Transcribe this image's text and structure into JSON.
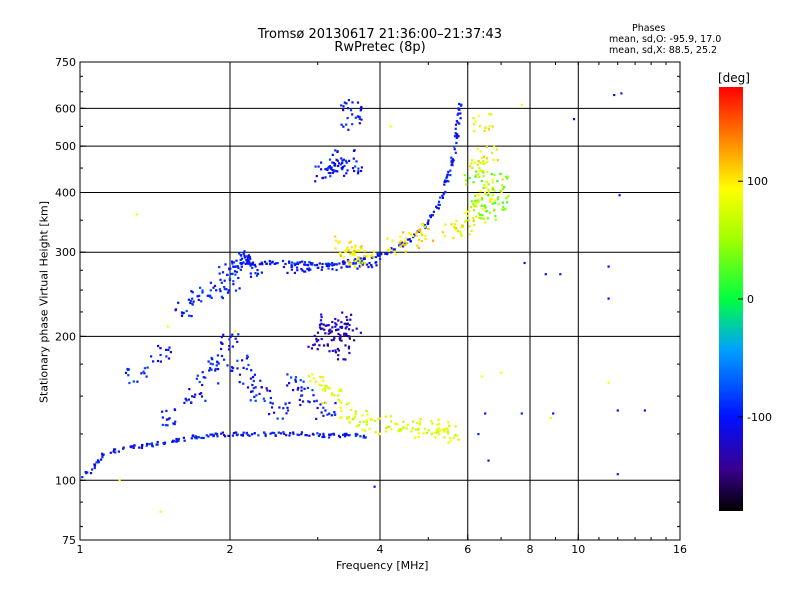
{
  "header": {
    "title_line1": "Tromsø 20130617 21:36:00–21:37:43",
    "title_line2": "RwPretec (8p)"
  },
  "phases_panel": {
    "heading": "Phases",
    "o_label": "mean, sd,O:",
    "o_values": "-95.9, 17.0",
    "x_label": "mean, sd,X:",
    "x_values": "88.5, 25.2"
  },
  "colorbar": {
    "unit": "[deg]",
    "range": [
      -180,
      180
    ],
    "ticks": [
      {
        "value": 100,
        "label": "100"
      },
      {
        "value": 0,
        "label": "0"
      },
      {
        "value": -100,
        "label": "-100"
      }
    ]
  },
  "chart_data": {
    "type": "scatter",
    "xlabel": "Frequency [MHz]",
    "ylabel": "Stationary phase Virtual Height [km]",
    "x_scale": "log",
    "y_scale": "log",
    "xlim": [
      1,
      16
    ],
    "ylim": [
      75,
      750
    ],
    "x_ticks": [
      {
        "value": 1,
        "label": "1"
      },
      {
        "value": 2,
        "label": "2"
      },
      {
        "value": 4,
        "label": "4"
      },
      {
        "value": 6,
        "label": "6"
      },
      {
        "value": 8,
        "label": "8"
      },
      {
        "value": 10,
        "label": "10"
      },
      {
        "value": 16,
        "label": "16"
      }
    ],
    "x_gridlines": [
      2,
      4,
      6,
      8,
      10
    ],
    "y_ticks": [
      {
        "value": 75,
        "label": "75"
      },
      {
        "value": 100,
        "label": "100"
      },
      {
        "value": 200,
        "label": "200"
      },
      {
        "value": 300,
        "label": "300"
      },
      {
        "value": 400,
        "label": "400"
      },
      {
        "value": 500,
        "label": "500"
      },
      {
        "value": 600,
        "label": "600"
      },
      {
        "value": 750,
        "label": "750"
      }
    ],
    "y_gridlines": [
      100,
      200,
      300,
      400,
      500,
      600
    ],
    "grid": true,
    "color_by": "phase [deg]",
    "traces": [
      {
        "kind": "curve",
        "phase": -100,
        "points": [
          [
            2.1,
            285
          ],
          [
            2.6,
            285
          ],
          [
            3.1,
            283
          ],
          [
            3.6,
            288
          ],
          [
            4.1,
            298
          ],
          [
            4.6,
            318
          ],
          [
            5.0,
            345
          ],
          [
            5.3,
            385
          ],
          [
            5.55,
            450
          ],
          [
            5.7,
            530
          ],
          [
            5.8,
            620
          ]
        ]
      },
      {
        "kind": "band",
        "phase": -100,
        "points": [
          [
            2.6,
            275
          ],
          [
            3.1,
            280
          ],
          [
            3.6,
            282
          ],
          [
            4.0,
            286
          ]
        ]
      },
      {
        "kind": "band",
        "phase": -100,
        "points": [
          [
            1.9,
            275
          ],
          [
            2.2,
            290
          ],
          [
            2.1,
            300
          ],
          [
            2.3,
            270
          ]
        ]
      },
      {
        "kind": "curve",
        "phase": -100,
        "points": [
          [
            1.0,
            102
          ],
          [
            1.05,
            104
          ],
          [
            1.1,
            112
          ],
          [
            1.2,
            116
          ],
          [
            1.4,
            119
          ],
          [
            1.6,
            122
          ],
          [
            1.8,
            124
          ],
          [
            2.0,
            125
          ],
          [
            2.4,
            125
          ],
          [
            2.8,
            125
          ],
          [
            3.2,
            124
          ],
          [
            3.6,
            124
          ],
          [
            3.8,
            124
          ]
        ]
      },
      {
        "kind": "cloud",
        "phase": -100,
        "points": [
          [
            1.5,
            135
          ],
          [
            1.7,
            150
          ],
          [
            1.8,
            165
          ],
          [
            1.9,
            180
          ],
          [
            2.0,
            195
          ],
          [
            2.1,
            175
          ],
          [
            2.2,
            160
          ],
          [
            2.3,
            150
          ],
          [
            2.5,
            140
          ],
          [
            2.7,
            160
          ],
          [
            2.9,
            150
          ],
          [
            3.1,
            140
          ]
        ]
      },
      {
        "kind": "cloud",
        "phase": -100,
        "points": [
          [
            1.3,
            165
          ],
          [
            1.45,
            185
          ],
          [
            1.6,
            230
          ],
          [
            1.75,
            245
          ],
          [
            1.9,
            250
          ],
          [
            2.0,
            260
          ],
          [
            2.1,
            275
          ]
        ]
      },
      {
        "kind": "cloud",
        "phase": -130,
        "points": [
          [
            3.0,
            195
          ],
          [
            3.1,
            205
          ],
          [
            3.2,
            215
          ],
          [
            3.3,
            205
          ],
          [
            3.4,
            215
          ],
          [
            3.5,
            200
          ],
          [
            3.3,
            185
          ]
        ]
      },
      {
        "kind": "cloud",
        "phase": -100,
        "points": [
          [
            3.1,
            440
          ],
          [
            3.2,
            460
          ],
          [
            3.3,
            450
          ],
          [
            3.4,
            470
          ],
          [
            3.5,
            455
          ],
          [
            3.5,
            560
          ],
          [
            3.5,
            600
          ]
        ]
      },
      {
        "kind": "cloud",
        "phase": 80,
        "points": [
          [
            3.0,
            160
          ],
          [
            3.2,
            150
          ],
          [
            3.4,
            140
          ],
          [
            3.6,
            135
          ],
          [
            3.8,
            130
          ],
          [
            4.3,
            132
          ],
          [
            4.6,
            128
          ],
          [
            5.0,
            130
          ],
          [
            5.3,
            128
          ],
          [
            5.5,
            125
          ]
        ]
      },
      {
        "kind": "cloud",
        "phase": 90,
        "points": [
          [
            5.6,
            335
          ],
          [
            5.9,
            340
          ],
          [
            6.2,
            360
          ],
          [
            6.5,
            390
          ],
          [
            6.8,
            410
          ],
          [
            6.3,
            450
          ],
          [
            6.6,
            480
          ],
          [
            6.4,
            560
          ]
        ]
      },
      {
        "kind": "cloud",
        "phase": 100,
        "points": [
          [
            3.4,
            310
          ],
          [
            3.5,
            300
          ],
          [
            3.6,
            295
          ],
          [
            3.7,
            290
          ],
          [
            4.3,
            310
          ],
          [
            4.6,
            320
          ],
          [
            4.9,
            330
          ]
        ]
      },
      {
        "kind": "cloud",
        "phase": 40,
        "points": [
          [
            6.4,
            380
          ],
          [
            6.6,
            360
          ],
          [
            6.9,
            420
          ],
          [
            7.1,
            380
          ],
          [
            6.2,
            425
          ]
        ]
      },
      {
        "kind": "scatter",
        "phase": -100,
        "points": [
          [
            7.8,
            285
          ],
          [
            8.6,
            270
          ],
          [
            9.2,
            270
          ],
          [
            11.5,
            280
          ],
          [
            12.1,
            395
          ],
          [
            11.5,
            240
          ],
          [
            11.8,
            640
          ],
          [
            12.2,
            645
          ],
          [
            9.8,
            570
          ],
          [
            6.5,
            138
          ],
          [
            7.7,
            138
          ],
          [
            8.9,
            138
          ],
          [
            12.0,
            140
          ],
          [
            13.6,
            140
          ],
          [
            6.3,
            125
          ],
          [
            6.6,
            110
          ],
          [
            12.0,
            103
          ],
          [
            3.9,
            97
          ]
        ]
      },
      {
        "kind": "scatter",
        "phase": 90,
        "points": [
          [
            1.2,
            100
          ],
          [
            1.45,
            86
          ],
          [
            1.3,
            360
          ],
          [
            1.5,
            210
          ],
          [
            2.05,
            205
          ],
          [
            4.2,
            550
          ],
          [
            7.7,
            610
          ],
          [
            11.5,
            160
          ],
          [
            8.8,
            135
          ],
          [
            6.4,
            165
          ],
          [
            7.0,
            168
          ]
        ]
      }
    ]
  }
}
